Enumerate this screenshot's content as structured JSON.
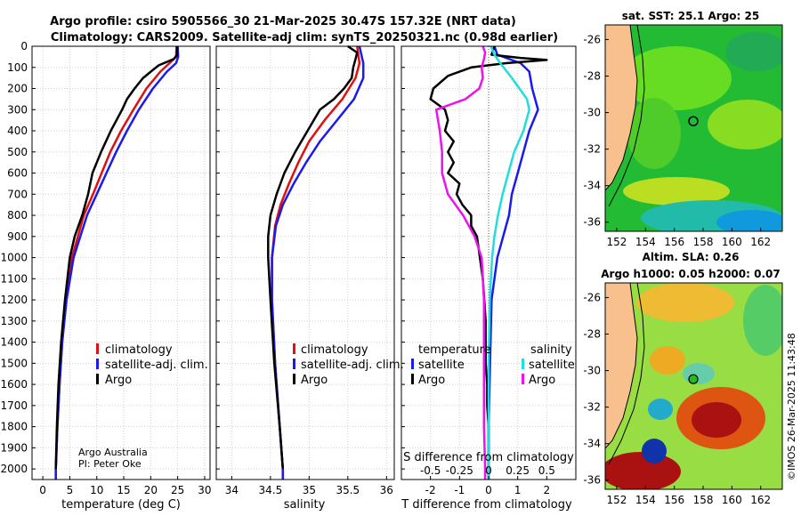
{
  "header": {
    "line1": "Argo profile: csiro 5905566_30 21-Mar-2025 30.47S 157.32E (NRT data)",
    "line2": "Climatology: CARS2009. Satellite-adj clim: synTS_20250321.nc (0.98d earlier)"
  },
  "credits": {
    "org": "Argo Australia",
    "pi": "PI: Peter Oke"
  },
  "timestamp": "©IMOS 26-Mar-2025 11:43:48",
  "colors": {
    "red": "#dd1111",
    "blue": "#1a1aee",
    "black": "#000000",
    "cyan": "#22dddd",
    "magenta": "#ee11ee",
    "land": "#f7c08c"
  },
  "chart_data": [
    {
      "type": "line",
      "panel": "temperature",
      "xlabel": "temperature (deg C)",
      "xlim": [
        -2,
        31
      ],
      "xticks": [
        0,
        5,
        10,
        15,
        20,
        25,
        30
      ],
      "ylim": [
        0,
        2050
      ],
      "yticks": [
        0,
        100,
        200,
        300,
        400,
        500,
        600,
        700,
        800,
        900,
        1000,
        1100,
        1200,
        1300,
        1400,
        1500,
        1600,
        1700,
        1800,
        1900,
        2000
      ],
      "legend": [
        "climatology",
        "satellite-adj. clim.",
        "Argo"
      ],
      "series": [
        {
          "name": "climatology",
          "color": "red",
          "depth": [
            0,
            50,
            80,
            120,
            200,
            300,
            400,
            500,
            600,
            700,
            800,
            1000,
            1200,
            1400,
            1600,
            1800,
            2000,
            2050
          ],
          "values": [
            24.8,
            24.7,
            23.5,
            21.8,
            19.2,
            16.8,
            14.5,
            12.5,
            10.9,
            9.3,
            7.6,
            5.4,
            4.3,
            3.6,
            3.1,
            2.7,
            2.4,
            2.4
          ]
        },
        {
          "name": "satellite-adj. clim.",
          "color": "blue",
          "depth": [
            0,
            50,
            80,
            120,
            200,
            300,
            400,
            500,
            600,
            700,
            800,
            1000,
            1200,
            1400,
            1600,
            1800,
            2000,
            2050
          ],
          "values": [
            25.0,
            25.1,
            24.7,
            23.0,
            20.4,
            17.8,
            15.6,
            13.6,
            11.8,
            10.0,
            8.2,
            5.7,
            4.4,
            3.6,
            3.1,
            2.7,
            2.4,
            2.4
          ]
        },
        {
          "name": "Argo",
          "color": "black",
          "depth": [
            0,
            40,
            60,
            90,
            110,
            150,
            200,
            250,
            300,
            400,
            500,
            600,
            700,
            800,
            900,
            1000,
            1200,
            1400,
            1600,
            1800,
            2000
          ],
          "values": [
            24.9,
            24.9,
            24.3,
            21.5,
            20.5,
            18.6,
            17.0,
            15.6,
            14.7,
            12.6,
            10.8,
            9.2,
            8.4,
            7.3,
            5.9,
            5.0,
            4.1,
            3.4,
            2.9,
            2.6,
            2.4
          ]
        }
      ]
    },
    {
      "type": "line",
      "panel": "salinity",
      "xlabel": "salinity",
      "xlim": [
        33.8,
        36.1
      ],
      "xticks": [
        34,
        34.5,
        35,
        35.5,
        36
      ],
      "xticklabels": [
        "34",
        "34.5",
        "35",
        "35.5",
        "36"
      ],
      "ylim": [
        0,
        2050
      ],
      "legend": [
        "climatology",
        "satellite-adj. clim.",
        "Argo"
      ],
      "series": [
        {
          "name": "climatology",
          "color": "red",
          "depth": [
            0,
            80,
            150,
            250,
            350,
            450,
            550,
            650,
            750,
            850,
            1000,
            1200,
            1500,
            1800,
            2000,
            2050
          ],
          "values": [
            35.62,
            35.65,
            35.6,
            35.43,
            35.2,
            35.0,
            34.86,
            34.74,
            34.63,
            34.56,
            34.52,
            34.52,
            34.56,
            34.62,
            34.66,
            34.66
          ]
        },
        {
          "name": "satellite-adj. clim.",
          "color": "blue",
          "depth": [
            0,
            80,
            150,
            250,
            350,
            450,
            550,
            650,
            750,
            850,
            1000,
            1200,
            1500,
            1800,
            2000,
            2050
          ],
          "values": [
            35.65,
            35.7,
            35.7,
            35.58,
            35.36,
            35.14,
            34.96,
            34.8,
            34.66,
            34.57,
            34.52,
            34.52,
            34.56,
            34.62,
            34.66,
            34.66
          ]
        },
        {
          "name": "Argo",
          "color": "black",
          "depth": [
            0,
            30,
            60,
            100,
            150,
            200,
            250,
            300,
            400,
            500,
            600,
            700,
            800,
            900,
            1000,
            1200,
            1500,
            1800,
            2000
          ],
          "values": [
            35.5,
            35.62,
            35.6,
            35.57,
            35.55,
            35.45,
            35.32,
            35.14,
            34.98,
            34.82,
            34.68,
            34.58,
            34.5,
            34.47,
            34.47,
            34.5,
            34.55,
            34.62,
            34.66
          ]
        }
      ]
    },
    {
      "type": "line",
      "panel": "difference",
      "xlabel": "T difference from climatology",
      "toplabel": "S difference from climatology",
      "xlim": [
        -3,
        3
      ],
      "xticks": [
        -2,
        -1,
        0,
        1,
        2
      ],
      "sxlim": [
        -0.75,
        0.75
      ],
      "sxticks": [
        -0.5,
        -0.25,
        0,
        0.25,
        0.5
      ],
      "sxticklabels": [
        "-0.5",
        "-0.25",
        "0",
        "0.25",
        "0.5"
      ],
      "ylim": [
        0,
        2050
      ],
      "legend_t": {
        "title": "temperature",
        "items": [
          "satellite",
          "Argo"
        ]
      },
      "legend_s": {
        "title": "salinity",
        "items": [
          "satellite",
          "Argo"
        ]
      },
      "series": [
        {
          "name": "temperature satellite",
          "color": "blue",
          "axis": "T",
          "depth": [
            0,
            40,
            80,
            120,
            200,
            300,
            400,
            500,
            600,
            700,
            800,
            1000,
            1200,
            1500,
            1800,
            2000,
            2050
          ],
          "values": [
            0.2,
            0.3,
            1.1,
            1.4,
            1.5,
            1.7,
            1.4,
            1.2,
            1.0,
            0.8,
            0.7,
            0.3,
            0.1,
            0.05,
            0.0,
            0.0,
            0.0
          ]
        },
        {
          "name": "temperature Argo",
          "color": "black",
          "axis": "T",
          "depth": [
            0,
            40,
            55,
            65,
            80,
            100,
            140,
            200,
            250,
            300,
            350,
            400,
            450,
            500,
            550,
            600,
            650,
            700,
            750,
            800,
            850,
            900,
            1000,
            1100,
            1200,
            1300,
            1400,
            1500,
            1600,
            1700,
            1800,
            1900,
            2000,
            2050
          ],
          "values": [
            0.2,
            0.1,
            1.1,
            2.0,
            0.6,
            -0.6,
            -1.4,
            -1.9,
            -2.0,
            -1.5,
            -1.4,
            -1.5,
            -1.2,
            -1.4,
            -1.2,
            -1.4,
            -1.0,
            -1.1,
            -0.9,
            -0.6,
            -0.6,
            -0.4,
            -0.3,
            -0.2,
            -0.15,
            -0.1,
            -0.1,
            -0.1,
            -0.05,
            -0.05,
            0.0,
            0.0,
            0.0,
            0.0
          ]
        },
        {
          "name": "salinity satellite",
          "color": "cyan",
          "axis": "S",
          "depth": [
            0,
            40,
            80,
            150,
            250,
            300,
            400,
            500,
            600,
            700,
            800,
            900,
            1000,
            1200,
            1500,
            1800,
            2000,
            2050
          ],
          "values": [
            0.02,
            0.05,
            0.1,
            0.2,
            0.33,
            0.35,
            0.3,
            0.22,
            0.17,
            0.12,
            0.08,
            0.05,
            0.03,
            0.01,
            0.0,
            0.0,
            0.0,
            0.0
          ]
        },
        {
          "name": "salinity Argo",
          "color": "magenta",
          "axis": "S",
          "depth": [
            0,
            30,
            60,
            100,
            150,
            200,
            250,
            300,
            400,
            500,
            600,
            700,
            800,
            900,
            1000,
            1100,
            1200,
            1400,
            1600,
            1800,
            2000,
            2050
          ],
          "values": [
            -0.05,
            -0.03,
            -0.04,
            -0.06,
            -0.05,
            -0.08,
            -0.2,
            -0.45,
            -0.42,
            -0.4,
            -0.4,
            -0.35,
            -0.22,
            -0.12,
            -0.06,
            -0.05,
            -0.04,
            -0.04,
            -0.04,
            -0.04,
            -0.03,
            -0.03
          ]
        }
      ]
    },
    {
      "type": "heatmap",
      "panel": "sst_map",
      "title": "sat. SST: 25.1 Argo: 25",
      "xticks": [
        152,
        154,
        156,
        158,
        160,
        162
      ],
      "yticks": [
        -26,
        -28,
        -30,
        -32,
        -34,
        -36
      ],
      "xlim": [
        151.2,
        163.5
      ],
      "ylim": [
        -25.2,
        -36.5
      ],
      "float_lon": 157.32,
      "float_lat": -30.47
    },
    {
      "type": "heatmap",
      "panel": "sla_map",
      "title": "Altim. SLA: 0.26",
      "subtitle": "Argo h1000: 0.05 h2000: 0.07",
      "xticks": [
        152,
        154,
        156,
        158,
        160,
        162
      ],
      "yticks": [
        -26,
        -28,
        -30,
        -32,
        -34,
        -36
      ],
      "xlim": [
        151.2,
        163.5
      ],
      "ylim": [
        -25.2,
        -36.5
      ],
      "float_lon": 157.32,
      "float_lat": -30.47
    }
  ]
}
